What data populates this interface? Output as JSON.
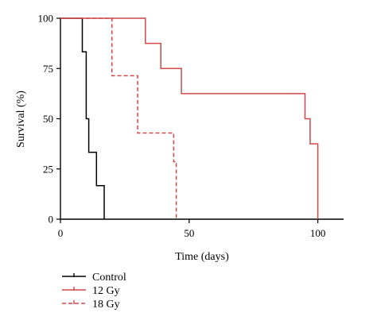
{
  "chart_data": {
    "type": "line",
    "xlabel": "Time (days)",
    "ylabel": "Survival (%)",
    "xlim": [
      0,
      110
    ],
    "ylim": [
      0,
      100
    ],
    "x_ticks": [
      "0",
      "50",
      "100"
    ],
    "x_tick_values": [
      0,
      50,
      100
    ],
    "y_ticks": [
      "0",
      "25",
      "50",
      "75",
      "100"
    ],
    "y_tick_values": [
      0,
      25,
      50,
      75,
      100
    ],
    "grid": false,
    "legend_position": "bottom-left",
    "series": [
      {
        "name": "Control",
        "color": "#000000",
        "dash": "solid",
        "x": [
          0,
          8,
          8.5,
          9,
          10,
          11,
          13,
          14,
          17
        ],
        "y": [
          100,
          100,
          83.3,
          83.3,
          50,
          33.3,
          33.3,
          16.7,
          0
        ]
      },
      {
        "name": "12 Gy",
        "color": "#d04848",
        "dash": "solid",
        "x": [
          0,
          29,
          33,
          39,
          47,
          95,
          97,
          100
        ],
        "y": [
          100,
          100,
          87.5,
          75,
          62.5,
          50,
          37.5,
          0
        ]
      },
      {
        "name": "18 Gy",
        "color": "#d04848",
        "dash": "dashed",
        "x": [
          0,
          10,
          20,
          30,
          44,
          45
        ],
        "y": [
          100,
          100,
          71.4,
          42.9,
          28.6,
          0
        ]
      }
    ]
  }
}
